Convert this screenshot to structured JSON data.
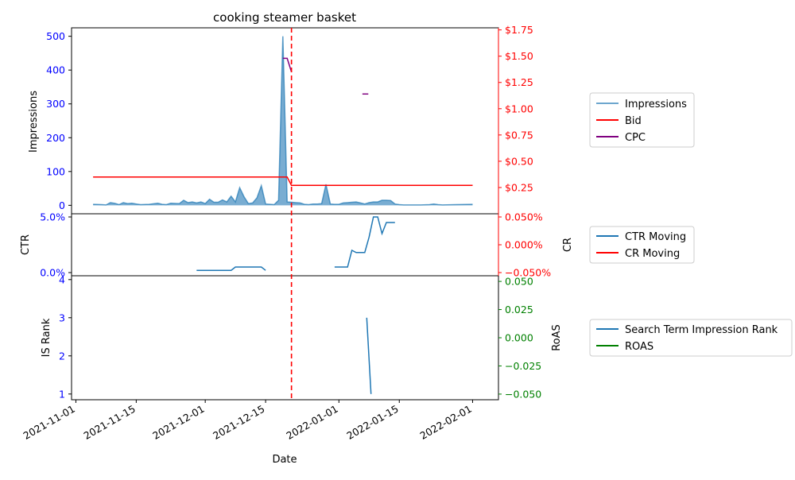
{
  "title": "cooking steamer basket",
  "xlabel": "Date",
  "x_ticks": [
    "2021-11-01",
    "2021-11-15",
    "2021-12-01",
    "2021-12-15",
    "2022-01-01",
    "2022-01-15",
    "2022-02-01"
  ],
  "event_date": "2021-12-21",
  "colors": {
    "impressions": "#1f77b4",
    "bid": "#ff0000",
    "cpc": "#800080",
    "roas": "#008000",
    "left_axis": "#0000ff",
    "right_axis_top": "#ff0000",
    "right_axis_bottom": "#008000"
  },
  "chart_data": [
    {
      "type": "area",
      "ylabel_left": "Impressions",
      "ylim_left": [
        -25,
        525
      ],
      "yticks_left": [
        "0",
        "100",
        "200",
        "300",
        "400",
        "500"
      ],
      "ylim_right": [
        0.0,
        1.77
      ],
      "yticks_right": [
        "$0.25",
        "$0.50",
        "$0.75",
        "$1.00",
        "$1.25",
        "$1.50",
        "$1.75"
      ],
      "legend": [
        "Impressions",
        "Bid",
        "CPC"
      ],
      "series": [
        {
          "name": "Impressions",
          "axis": "left",
          "points": [
            [
              "2021-11-05",
              3
            ],
            [
              "2021-11-07",
              2
            ],
            [
              "2021-11-08",
              1
            ],
            [
              "2021-11-09",
              8
            ],
            [
              "2021-11-10",
              6
            ],
            [
              "2021-11-11",
              2
            ],
            [
              "2021-11-12",
              8
            ],
            [
              "2021-11-13",
              5
            ],
            [
              "2021-11-14",
              6
            ],
            [
              "2021-11-15",
              4
            ],
            [
              "2021-11-16",
              2
            ],
            [
              "2021-11-18",
              3
            ],
            [
              "2021-11-20",
              6
            ],
            [
              "2021-11-21",
              3
            ],
            [
              "2021-11-22",
              2
            ],
            [
              "2021-11-23",
              6
            ],
            [
              "2021-11-25",
              5
            ],
            [
              "2021-11-26",
              15
            ],
            [
              "2021-11-27",
              8
            ],
            [
              "2021-11-28",
              10
            ],
            [
              "2021-11-29",
              7
            ],
            [
              "2021-11-30",
              10
            ],
            [
              "2021-12-01",
              5
            ],
            [
              "2021-12-02",
              18
            ],
            [
              "2021-12-03",
              9
            ],
            [
              "2021-12-04",
              9
            ],
            [
              "2021-12-05",
              16
            ],
            [
              "2021-12-06",
              10
            ],
            [
              "2021-12-07",
              27
            ],
            [
              "2021-12-08",
              10
            ],
            [
              "2021-12-09",
              52
            ],
            [
              "2021-12-10",
              25
            ],
            [
              "2021-12-11",
              5
            ],
            [
              "2021-12-12",
              7
            ],
            [
              "2021-12-13",
              22
            ],
            [
              "2021-12-14",
              58
            ],
            [
              "2021-12-15",
              4
            ],
            [
              "2021-12-16",
              3
            ],
            [
              "2021-12-17",
              2
            ],
            [
              "2021-12-18",
              15
            ],
            [
              "2021-12-19",
              500
            ],
            [
              "2021-12-20",
              10
            ],
            [
              "2021-12-21",
              9
            ],
            [
              "2021-12-22",
              8
            ],
            [
              "2021-12-23",
              7
            ],
            [
              "2021-12-24",
              3
            ],
            [
              "2021-12-25",
              2
            ],
            [
              "2021-12-26",
              4
            ],
            [
              "2021-12-27",
              4
            ],
            [
              "2021-12-28",
              5
            ],
            [
              "2021-12-29",
              62
            ],
            [
              "2021-12-30",
              4
            ],
            [
              "2021-12-31",
              3
            ],
            [
              "2022-01-01",
              3
            ],
            [
              "2022-01-02",
              7
            ],
            [
              "2022-01-03",
              8
            ],
            [
              "2022-01-04",
              9
            ],
            [
              "2022-01-05",
              10
            ],
            [
              "2022-01-06",
              7
            ],
            [
              "2022-01-07",
              4
            ],
            [
              "2022-01-08",
              8
            ],
            [
              "2022-01-09",
              10
            ],
            [
              "2022-01-10",
              10
            ],
            [
              "2022-01-11",
              15
            ],
            [
              "2022-01-12",
              15
            ],
            [
              "2022-01-13",
              14
            ],
            [
              "2022-01-14",
              4
            ],
            [
              "2022-01-15",
              2
            ],
            [
              "2022-01-16",
              1
            ],
            [
              "2022-01-17",
              1
            ],
            [
              "2022-01-18",
              1
            ],
            [
              "2022-01-20",
              1
            ],
            [
              "2022-01-22",
              2
            ],
            [
              "2022-01-23",
              4
            ],
            [
              "2022-01-24",
              2
            ],
            [
              "2022-01-25",
              1
            ],
            [
              "2022-01-28",
              2
            ],
            [
              "2022-02-01",
              3
            ]
          ]
        },
        {
          "name": "Bid",
          "axis": "right",
          "points": [
            [
              "2021-11-05",
              0.35
            ],
            [
              "2021-12-20",
              0.35
            ],
            [
              "2021-12-21",
              0.27
            ],
            [
              "2022-02-01",
              0.27
            ]
          ]
        },
        {
          "name": "CPC",
          "axis": "right",
          "points": [
            [
              "2021-12-19",
              1.48
            ],
            [
              "2021-12-20",
              1.48
            ],
            [
              "2021-12-21",
              1.35
            ],
            [
              "2022-01-07",
              1.14
            ],
            [
              "2022-01-08",
              1.14
            ]
          ]
        }
      ]
    },
    {
      "type": "line",
      "ylabel_left": "CTR",
      "ylim_left": [
        0.0,
        0.05
      ],
      "yticks_left": [
        "0.0%",
        "5.0%"
      ],
      "ylabel_right": "CR",
      "ylim_right": [
        -0.05,
        0.05
      ],
      "yticks_right": [
        "−0.050%",
        "0.000%",
        "0.050%"
      ],
      "legend": [
        "CTR Moving",
        "CR Moving"
      ],
      "series": [
        {
          "name": "CTR Moving",
          "axis": "left",
          "segments": [
            [
              [
                "2021-11-29",
                0.002
              ],
              [
                "2021-12-06",
                0.002
              ],
              [
                "2021-12-07",
                0.002
              ],
              [
                "2021-12-08",
                0.005
              ],
              [
                "2021-12-13",
                0.005
              ],
              [
                "2021-12-14",
                0.005
              ],
              [
                "2021-12-15",
                0.002
              ]
            ],
            [
              [
                "2021-12-31",
                0.005
              ],
              [
                "2022-01-02",
                0.005
              ],
              [
                "2022-01-03",
                0.005
              ],
              [
                "2022-01-04",
                0.02
              ],
              [
                "2022-01-05",
                0.018
              ],
              [
                "2022-01-06",
                0.018
              ],
              [
                "2022-01-07",
                0.018
              ],
              [
                "2022-01-08",
                0.032
              ],
              [
                "2022-01-09",
                0.05
              ],
              [
                "2022-01-10",
                0.05
              ],
              [
                "2022-01-11",
                0.035
              ],
              [
                "2022-01-12",
                0.045
              ],
              [
                "2022-01-13",
                0.045
              ],
              [
                "2022-01-14",
                0.045
              ]
            ]
          ]
        },
        {
          "name": "CR Moving",
          "axis": "right",
          "segments": []
        }
      ]
    },
    {
      "type": "line",
      "ylabel_left": "IS Rank",
      "ylim_left": [
        0.85,
        4.1
      ],
      "yticks_left": [
        "1",
        "2",
        "3",
        "4"
      ],
      "ylabel_right": "RoAS",
      "ylim_right": [
        -0.055,
        0.055
      ],
      "yticks_right": [
        "−0.050",
        "−0.025",
        "0.000",
        "0.025",
        "0.050"
      ],
      "legend": [
        "Search Term Impression Rank",
        "ROAS"
      ],
      "series": [
        {
          "name": "Search Term Impression Rank",
          "axis": "left",
          "points": [
            [
              "2022-01-08",
              3.0
            ],
            [
              "2022-01-09",
              1.0
            ]
          ]
        },
        {
          "name": "ROAS",
          "axis": "right",
          "points": []
        }
      ]
    }
  ]
}
